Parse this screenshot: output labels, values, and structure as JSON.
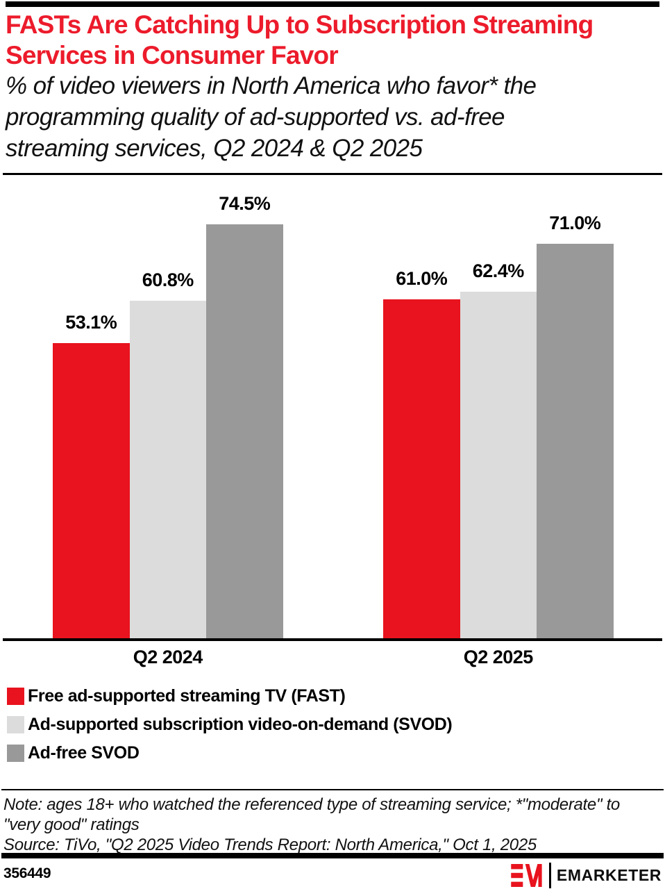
{
  "page": {
    "title_lines": [
      "FASTs Are Catching Up to Subscription Streaming",
      "Services in Consumer Favor"
    ],
    "subtitle_lines": [
      "% of video viewers in North America who favor* the",
      "programming quality of ad-supported vs. ad-free",
      "streaming services, Q2 2024 & Q2 2025"
    ]
  },
  "chart_data": {
    "type": "bar",
    "title": "FASTs Are Catching Up to Subscription Streaming Services in Consumer Favor",
    "subtitle": "% of video viewers in North America who favor* the programming quality of ad-supported vs. ad-free streaming services, Q2 2024 & Q2 2025",
    "categories": [
      "Q2 2024",
      "Q2 2025"
    ],
    "series": [
      {
        "name": "Free ad-supported streaming TV (FAST)",
        "color": "#E8131E",
        "values": [
          53.1,
          61.0
        ],
        "labels": [
          "53.1%",
          "61.0%"
        ]
      },
      {
        "name": "Ad-supported subscription video-on-demand (SVOD)",
        "color": "#DCDCDC",
        "values": [
          60.8,
          62.4
        ],
        "labels": [
          "60.8%",
          "62.4%"
        ]
      },
      {
        "name": "Ad-free SVOD",
        "color": "#999999",
        "values": [
          74.5,
          71.0
        ],
        "labels": [
          "74.5%",
          "71.0%"
        ]
      }
    ],
    "ylim": [
      0,
      80
    ],
    "grid": false,
    "value_labels": "above-bars",
    "legend_position": "below-chart-left"
  },
  "legend": {
    "items": [
      {
        "label": "Free ad-supported streaming TV (FAST)",
        "color": "#E8131E"
      },
      {
        "label": "Ad-supported subscription video-on-demand (SVOD)",
        "color": "#DCDCDC"
      },
      {
        "label": "Ad-free SVOD",
        "color": "#999999"
      }
    ]
  },
  "notes": {
    "note_line1": "Note: ages 18+ who watched the referenced type of streaming service; *\"moderate\" to",
    "note_line2": "\"very good\" ratings",
    "source": "Source: TiVo, \"Q2 2025 Video Trends Report: North America,\" Oct 1, 2025"
  },
  "footer": {
    "chart_id": "356449",
    "brand_wordmark": "EMARKETER"
  },
  "colors": {
    "title_red": "#EC1B2B",
    "brand_red": "#E8131E",
    "bar_light_gray": "#DCDCDC",
    "bar_dark_gray": "#999999",
    "rule_black": "#000000",
    "background": "#FFFFFF"
  }
}
